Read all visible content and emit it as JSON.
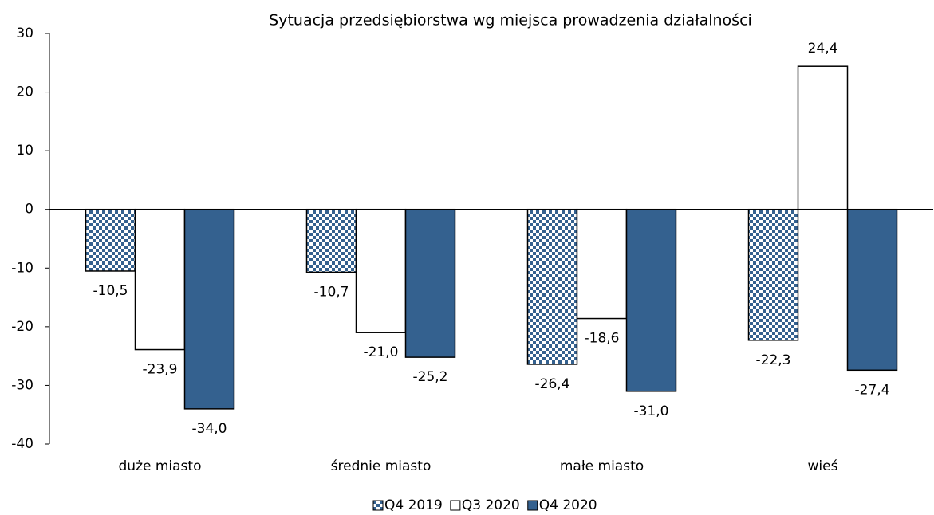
{
  "chart_data": {
    "type": "bar",
    "title": "Sytuacja przedsiębiorstwa wg miejsca prowadzenia działalności",
    "categories": [
      "duże miasto",
      "średnie miasto",
      "małe miasto",
      "wieś"
    ],
    "series": [
      {
        "name": "Q4 2019",
        "color": "#34618f",
        "pattern": "checkerboard",
        "values": [
          -10.5,
          -10.7,
          -26.4,
          -22.3
        ],
        "value_labels": [
          "-10,5",
          "-10,7",
          "-26,4",
          "-22,3"
        ]
      },
      {
        "name": "Q3 2020",
        "color": "#ffffff",
        "values": [
          -23.9,
          -21.0,
          -18.6,
          24.4
        ],
        "value_labels": [
          "-23,9",
          "-21,0",
          "-18,6",
          "24,4"
        ]
      },
      {
        "name": "Q4 2020",
        "color": "#34618f",
        "values": [
          -34.0,
          -25.2,
          -31.0,
          -27.4
        ],
        "value_labels": [
          "-34,0",
          "-25,2",
          "-31,0",
          "-27,4"
        ]
      }
    ],
    "ylim": [
      -40,
      30
    ],
    "yticks": [
      -40,
      -30,
      -20,
      -10,
      0,
      10,
      20,
      30
    ],
    "grid": false,
    "legend": "bottom"
  }
}
